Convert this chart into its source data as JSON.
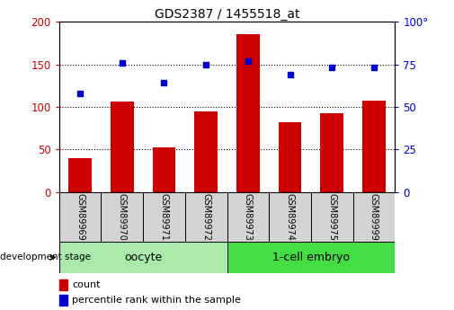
{
  "title": "GDS2387 / 1455518_at",
  "categories": [
    "GSM89969",
    "GSM89970",
    "GSM89971",
    "GSM89972",
    "GSM89973",
    "GSM89974",
    "GSM89975",
    "GSM89999"
  ],
  "bar_values": [
    40,
    106,
    53,
    95,
    185,
    82,
    93,
    107
  ],
  "scatter_values": [
    58,
    76,
    64,
    75,
    77,
    69,
    73,
    73
  ],
  "bar_color": "#cc0000",
  "scatter_color": "#0000cc",
  "left_ylim": [
    0,
    200
  ],
  "right_ylim": [
    0,
    100
  ],
  "left_yticks": [
    0,
    50,
    100,
    150,
    200
  ],
  "right_yticks": [
    0,
    25,
    50,
    75,
    100
  ],
  "right_yticklabels": [
    "0",
    "25",
    "50",
    "75",
    "100°"
  ],
  "group1_label": "oocyte",
  "group2_label": "1-cell embryo",
  "group1_indices": [
    0,
    1,
    2,
    3
  ],
  "group2_indices": [
    4,
    5,
    6,
    7
  ],
  "group1_color": "#aaeaaa",
  "group2_color": "#44dd44",
  "stage_label": "development stage",
  "legend_count": "count",
  "legend_percentile": "percentile rank within the sample",
  "tick_label_color_left": "#cc0000",
  "tick_label_color_right": "#0000cc",
  "grid_dotted_at": [
    50,
    100,
    150
  ]
}
